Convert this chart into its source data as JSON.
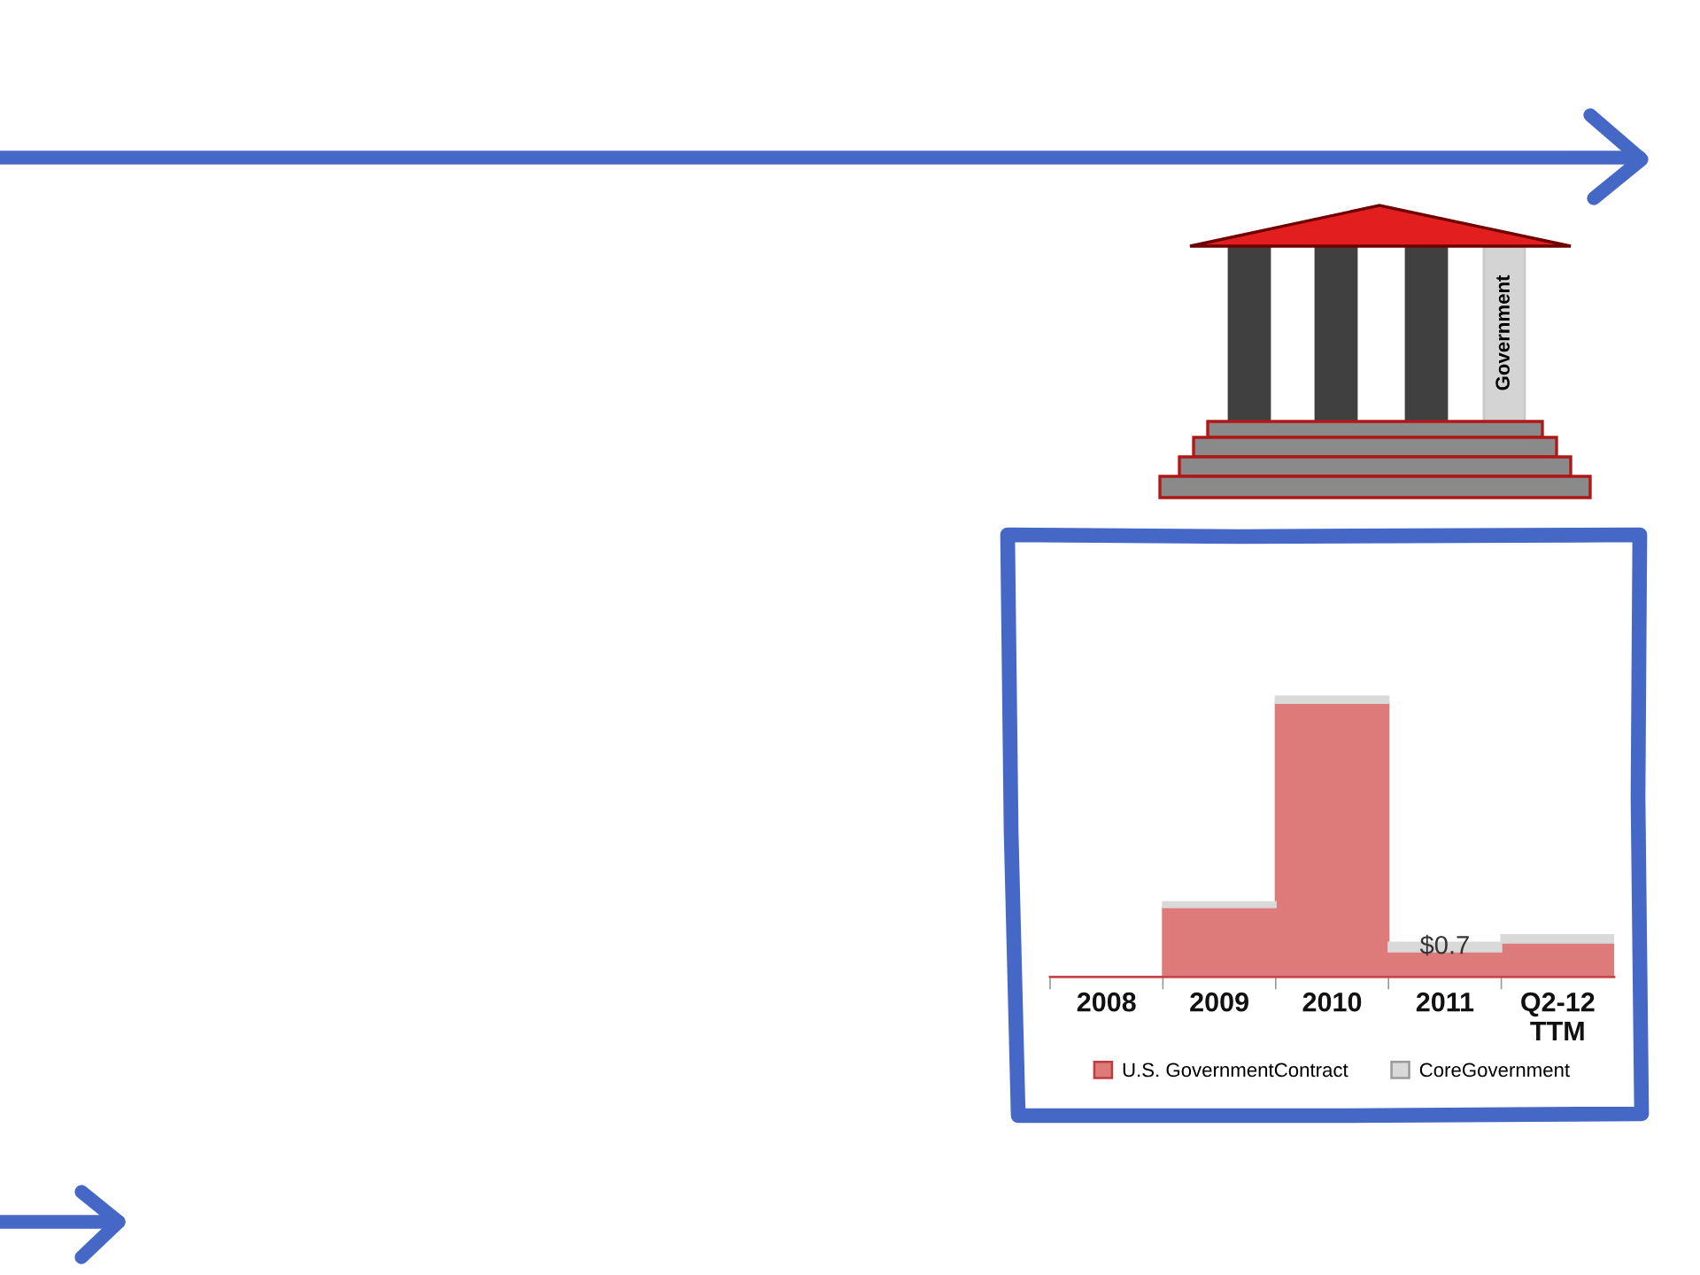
{
  "chart_data": {
    "type": "bar",
    "stacked": true,
    "categories": [
      "2008",
      "2009",
      "2010",
      "2011",
      "Q2-12\nTTM"
    ],
    "series": [
      {
        "name": "U.S. GovernmentContract",
        "color": "#dd7b7b",
        "values": [
          0,
          5.5,
          21.6,
          2.0,
          2.7
        ]
      },
      {
        "name": "CoreGovernment",
        "color": "#d9d9d9",
        "values": [
          0,
          0.4,
          0.6,
          0.7,
          0.6
        ],
        "value_labels": [
          null,
          null,
          null,
          "$0.7",
          null
        ]
      }
    ],
    "ylim": [
      0,
      22.2
    ],
    "legend": "bottom",
    "grid": false,
    "annotations": [
      "Government"
    ]
  }
}
